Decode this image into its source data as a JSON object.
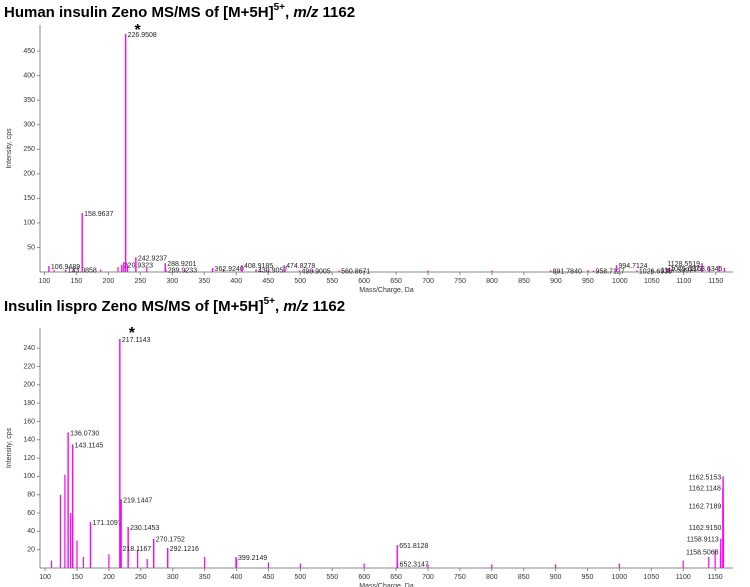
{
  "chart_data": [
    {
      "type": "spectrum",
      "title": {
        "text": "Human insulin Zeno MS/MS of [M+5H]",
        "superscript": "5+",
        "separator": ", ",
        "italic": "m/z",
        "end": " 1162"
      },
      "x_label": "Mass/Charge, Da",
      "y_label": "Intensity, cps",
      "xlim": [
        93,
        1177
      ],
      "ylim": [
        0,
        503
      ],
      "xticks": [
        100,
        150,
        200,
        250,
        300,
        350,
        400,
        450,
        500,
        550,
        600,
        650,
        700,
        750,
        800,
        850,
        900,
        950,
        1000,
        1050,
        1100,
        1150
      ],
      "yticks": [
        50,
        100,
        150,
        200,
        250,
        300,
        350,
        400,
        450
      ],
      "color": "#ff00ff",
      "annotations": [
        {
          "text": "*",
          "x": 226.9508
        }
      ],
      "peaks": {
        "mz": [
          106.9489,
          133.0858,
          158.9637,
          220.9323,
          226.9508,
          242.9237,
          288.9201,
          289.9233,
          362.924,
          408.9185,
          430.9057,
          474.8278,
          498.9005,
          560.8671,
          891.784,
          958.7127,
          994.7124,
          1026.6938,
          1075.6371,
          1117.5097,
          1128.5519,
          1163.6345
        ],
        "intensity": [
          12,
          5,
          120,
          15,
          485,
          30,
          18,
          5,
          8,
          14,
          5,
          14,
          3,
          3,
          3,
          3,
          14,
          3,
          8,
          5,
          18,
          8
        ],
        "value_labels": [
          "106.9489",
          "133.0858",
          "158.9637",
          "220.9323",
          "226.9508",
          "242.9237",
          "288.9201",
          "289.9233",
          "362.9240",
          "408.9185",
          "430.9057",
          "474.8278",
          "498.9005",
          "560.8671",
          "891.7840",
          "958.7127",
          "994.7124",
          "1026.6938",
          "1075.6371",
          "1117.5097",
          "1128.5519",
          "1163.6345"
        ]
      },
      "minor_peaks": {
        "mz": [
          115,
          145,
          188,
          215,
          224,
          230,
          260,
          320,
          380,
          450,
          520,
          600,
          700,
          800,
          950,
          1050,
          1100,
          1140,
          1155
        ],
        "intensity": [
          4,
          6,
          5,
          10,
          20,
          15,
          8,
          5,
          6,
          5,
          4,
          3,
          3,
          3,
          4,
          5,
          6,
          10,
          12
        ]
      }
    },
    {
      "type": "spectrum",
      "title": {
        "text": "Insulin lispro Zeno MS/MS of [M+5H]",
        "superscript": "5+",
        "separator": ", ",
        "italic": "m/z",
        "end": " 1162"
      },
      "x_label": "Mass/Charge, Da",
      "y_label": "Intensity, cps",
      "xlim": [
        92,
        1178
      ],
      "ylim": [
        0,
        262
      ],
      "xticks": [
        100,
        150,
        200,
        250,
        300,
        350,
        400,
        450,
        500,
        550,
        600,
        650,
        700,
        750,
        800,
        850,
        900,
        950,
        1000,
        1050,
        1100,
        1150
      ],
      "yticks": [
        20,
        40,
        60,
        80,
        100,
        120,
        140,
        160,
        180,
        200,
        220,
        240
      ],
      "color": "#ff00ff",
      "annotations": [
        {
          "text": "*",
          "x": 217.1143
        }
      ],
      "peaks": {
        "mz": [
          136.073,
          143.1145,
          171.1097,
          217.1143,
          219.1447,
          230.1453,
          218.1167,
          270.1752,
          292.1216,
          399.2149,
          651.8128,
          652.3147,
          1162.5153,
          1162.1148,
          1162.7189,
          1162.915,
          1158.9113,
          1158.5068
        ],
        "intensity": [
          148,
          135,
          50,
          250,
          75,
          45,
          22,
          32,
          22,
          12,
          25,
          5,
          100,
          88,
          68,
          45,
          32,
          18
        ],
        "value_labels": [
          "136.0730",
          "143.1145",
          "171.1097",
          "217.1143",
          "219.1447",
          "230.1453",
          "218.1167",
          "270.1752",
          "292.1216",
          "399.2149",
          "651.8128",
          "652.3147",
          "1162.5153",
          "1162.1148",
          "1162.7189",
          "1162.9150",
          "1158.9113",
          "1158.5068"
        ]
      },
      "minor_peaks": {
        "mz": [
          110,
          124,
          131,
          140,
          150,
          160,
          200,
          245,
          260,
          350,
          400,
          450,
          500,
          600,
          700,
          800,
          900,
          1000,
          1100,
          1140,
          1150
        ],
        "intensity": [
          8,
          80,
          102,
          60,
          30,
          12,
          15,
          20,
          10,
          12,
          10,
          6,
          5,
          5,
          4,
          4,
          4,
          5,
          8,
          12,
          20
        ]
      }
    }
  ]
}
